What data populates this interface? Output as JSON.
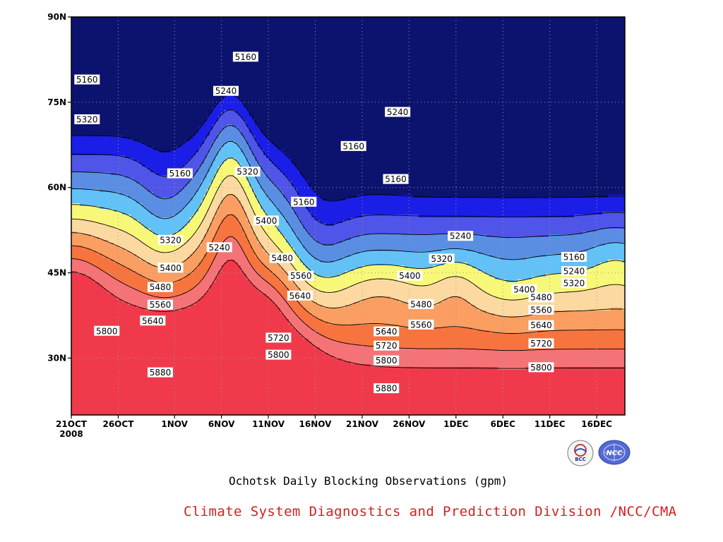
{
  "chart_data": {
    "type": "contour",
    "title": "",
    "caption": "Ochotsk Daily Blocking Observations (gpm)",
    "credit": "Climate System Diagnostics and Prediction Division /NCC/CMA",
    "x_axis": {
      "range_days": [
        0,
        59
      ],
      "ticks": [
        {
          "day": 0,
          "label": "21OCT",
          "sublabel": "2008"
        },
        {
          "day": 5,
          "label": "26OCT"
        },
        {
          "day": 11,
          "label": "1NOV"
        },
        {
          "day": 16,
          "label": "6NOV"
        },
        {
          "day": 21,
          "label": "11NOV"
        },
        {
          "day": 26,
          "label": "16NOV"
        },
        {
          "day": 31,
          "label": "21NOV"
        },
        {
          "day": 36,
          "label": "26NOV"
        },
        {
          "day": 41,
          "label": "1DEC"
        },
        {
          "day": 46,
          "label": "6DEC"
        },
        {
          "day": 51,
          "label": "11DEC"
        },
        {
          "day": 56,
          "label": "16DEC"
        }
      ]
    },
    "y_axis": {
      "range": [
        20,
        90
      ],
      "ticks": [
        {
          "value": 30,
          "label": "30N"
        },
        {
          "value": 45,
          "label": "45N"
        },
        {
          "value": 60,
          "label": "60N"
        },
        {
          "value": 75,
          "label": "75N"
        },
        {
          "value": 90,
          "label": "90N"
        }
      ]
    },
    "grid": true,
    "levels": [
      5160,
      5240,
      5320,
      5400,
      5480,
      5560,
      5640,
      5720,
      5800,
      5880
    ],
    "fill_colors": {
      "below_5160": "#0c136e",
      "5160_5240": "#1a1ee6",
      "5240_5320": "#4f55e8",
      "5320_5400": "#5a8ee3",
      "5400_5480": "#62c2f8",
      "5480_5560": "#f8f878",
      "5560_5640": "#fcd9a0",
      "5640_5720": "#fa9e62",
      "5720_5800": "#f8743e",
      "5800_5880": "#f57376",
      "above_5880": "#f03a4b"
    },
    "contour_labels": [
      {
        "day": 0.4,
        "lat": 79,
        "value": "5160"
      },
      {
        "day": 0.4,
        "lat": 72,
        "value": "5320"
      },
      {
        "day": 17.3,
        "lat": 83,
        "value": "5160"
      },
      {
        "day": 15.2,
        "lat": 77,
        "value": "5240"
      },
      {
        "day": 10.3,
        "lat": 62.5,
        "value": "5160"
      },
      {
        "day": 17.5,
        "lat": 62.8,
        "value": "5320"
      },
      {
        "day": 23.5,
        "lat": 57.5,
        "value": "5160"
      },
      {
        "day": 28.8,
        "lat": 67.3,
        "value": "5160"
      },
      {
        "day": 33.5,
        "lat": 73.3,
        "value": "5240"
      },
      {
        "day": 33.3,
        "lat": 61.5,
        "value": "5160"
      },
      {
        "day": 19.5,
        "lat": 54.2,
        "value": "5400"
      },
      {
        "day": 9.3,
        "lat": 50.8,
        "value": "5320"
      },
      {
        "day": 14.5,
        "lat": 49.5,
        "value": "5240"
      },
      {
        "day": 9.3,
        "lat": 45.9,
        "value": "5400"
      },
      {
        "day": 8.2,
        "lat": 42.5,
        "value": "5480"
      },
      {
        "day": 8.2,
        "lat": 39.4,
        "value": "5560"
      },
      {
        "day": 7.4,
        "lat": 36.6,
        "value": "5640"
      },
      {
        "day": 2.5,
        "lat": 34.8,
        "value": "5800"
      },
      {
        "day": 8.2,
        "lat": 27.5,
        "value": "5880"
      },
      {
        "day": 21.2,
        "lat": 47.6,
        "value": "5480"
      },
      {
        "day": 23.2,
        "lat": 44.5,
        "value": "5560"
      },
      {
        "day": 23.1,
        "lat": 41.0,
        "value": "5640"
      },
      {
        "day": 20.8,
        "lat": 33.6,
        "value": "5720"
      },
      {
        "day": 20.8,
        "lat": 30.6,
        "value": "5800"
      },
      {
        "day": 34.8,
        "lat": 44.5,
        "value": "5400"
      },
      {
        "day": 36.0,
        "lat": 39.5,
        "value": "5480"
      },
      {
        "day": 36.0,
        "lat": 35.9,
        "value": "5560"
      },
      {
        "day": 32.3,
        "lat": 34.7,
        "value": "5640"
      },
      {
        "day": 32.3,
        "lat": 32.2,
        "value": "5720"
      },
      {
        "day": 32.3,
        "lat": 29.6,
        "value": "5800"
      },
      {
        "day": 32.3,
        "lat": 24.7,
        "value": "5880"
      },
      {
        "day": 40.2,
        "lat": 51.5,
        "value": "5240"
      },
      {
        "day": 38.2,
        "lat": 47.5,
        "value": "5320"
      },
      {
        "day": 47.0,
        "lat": 42.1,
        "value": "5400"
      },
      {
        "day": 48.8,
        "lat": 40.7,
        "value": "5480"
      },
      {
        "day": 48.8,
        "lat": 38.5,
        "value": "5560"
      },
      {
        "day": 48.8,
        "lat": 35.8,
        "value": "5640"
      },
      {
        "day": 48.8,
        "lat": 32.6,
        "value": "5720"
      },
      {
        "day": 48.8,
        "lat": 28.4,
        "value": "5800"
      },
      {
        "day": 52.3,
        "lat": 47.8,
        "value": "5160"
      },
      {
        "day": 52.3,
        "lat": 45.3,
        "value": "5240"
      },
      {
        "day": 52.3,
        "lat": 43.2,
        "value": "5320"
      }
    ]
  },
  "logos": {
    "left": "bcc-logo",
    "right": "ncc-logo",
    "left_text": "BCC",
    "right_text": "NCC"
  }
}
